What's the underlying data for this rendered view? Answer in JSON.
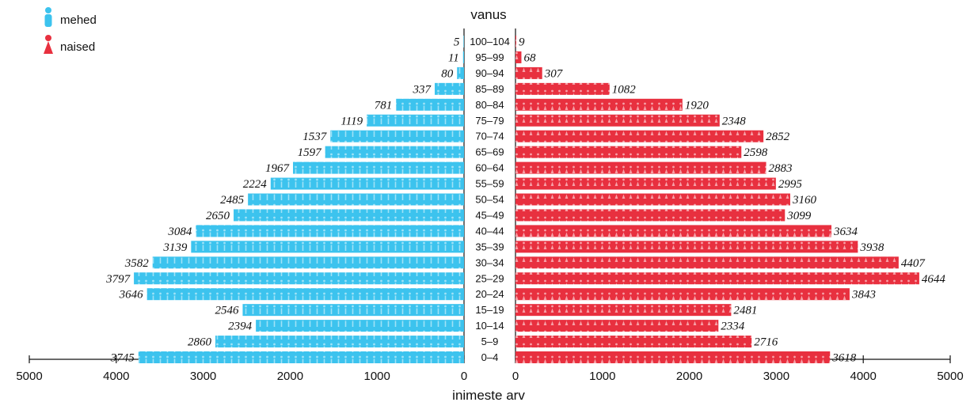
{
  "chart_data": {
    "type": "bar",
    "orientation": "horizontal",
    "layout": "population-pyramid",
    "title": "",
    "category_axis_label": "vanus",
    "xlabel": "inimeste arv",
    "xlim": [
      0,
      5000
    ],
    "xticks": [
      "5000",
      "4000",
      "3000",
      "2000",
      "1000",
      "0",
      "0",
      "1000",
      "2000",
      "3000",
      "4000",
      "5000"
    ],
    "legend_position": "top-left",
    "categories": [
      "100–104",
      "95–99",
      "90–94",
      "85–89",
      "80–84",
      "75–79",
      "70–74",
      "65–69",
      "60–64",
      "55–59",
      "50–54",
      "45–49",
      "40–44",
      "35–39",
      "30–34",
      "25–29",
      "20–24",
      "15–19",
      "10–14",
      "5–9",
      "0–4"
    ],
    "series": [
      {
        "name": "mehed",
        "side": "left",
        "color": "#3cc3ee",
        "values": [
          5,
          11,
          80,
          337,
          781,
          1119,
          1537,
          1597,
          1967,
          2224,
          2485,
          2650,
          3084,
          3139,
          3582,
          3797,
          3646,
          2546,
          2394,
          2860,
          3745
        ]
      },
      {
        "name": "naised",
        "side": "right",
        "color": "#e8303f",
        "values": [
          9,
          68,
          307,
          1082,
          1920,
          2348,
          2852,
          2598,
          2883,
          2995,
          3160,
          3099,
          3634,
          3938,
          4407,
          4644,
          3843,
          2481,
          2334,
          2716,
          3618
        ]
      }
    ]
  }
}
